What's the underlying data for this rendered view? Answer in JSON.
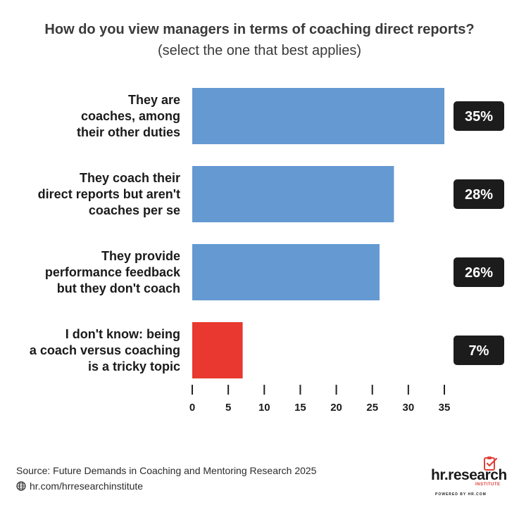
{
  "chart_data": {
    "type": "bar",
    "orientation": "horizontal",
    "title": "How do you view managers in terms of coaching direct reports?",
    "subtitle": "(select the one that best applies)",
    "categories": [
      [
        "They are",
        "coaches, among",
        "their other duties"
      ],
      [
        "They coach their",
        "direct reports but aren't",
        "coaches per se"
      ],
      [
        "They provide",
        "performance feedback",
        "but they don't coach"
      ],
      [
        "I don't know: being",
        "a coach versus coaching",
        "is a tricky topic"
      ]
    ],
    "values": [
      35,
      28,
      26,
      7
    ],
    "value_labels": [
      "35%",
      "28%",
      "26%",
      "7%"
    ],
    "bar_colors": [
      "#6499d2",
      "#6499d2",
      "#6499d2",
      "#e8382f"
    ],
    "xlim": [
      0,
      35
    ],
    "xticks": [
      0,
      5,
      10,
      15,
      20,
      25,
      30,
      35
    ],
    "grid": false,
    "legend": "none"
  },
  "footer": {
    "source": "Source:  Future Demands in Coaching and Mentoring Research 2025",
    "link": "hr.com/hrresearchinstitute"
  },
  "logo": {
    "brand": "hr.research",
    "institute": "INSTITUTE",
    "powered": "POWERED BY HR.COM"
  },
  "colors": {
    "label_box": "#1c1c1c",
    "axis": "#222222"
  },
  "icons": {
    "footer_link": "globe-icon",
    "logo_mark": "clipboard-check-icon"
  }
}
